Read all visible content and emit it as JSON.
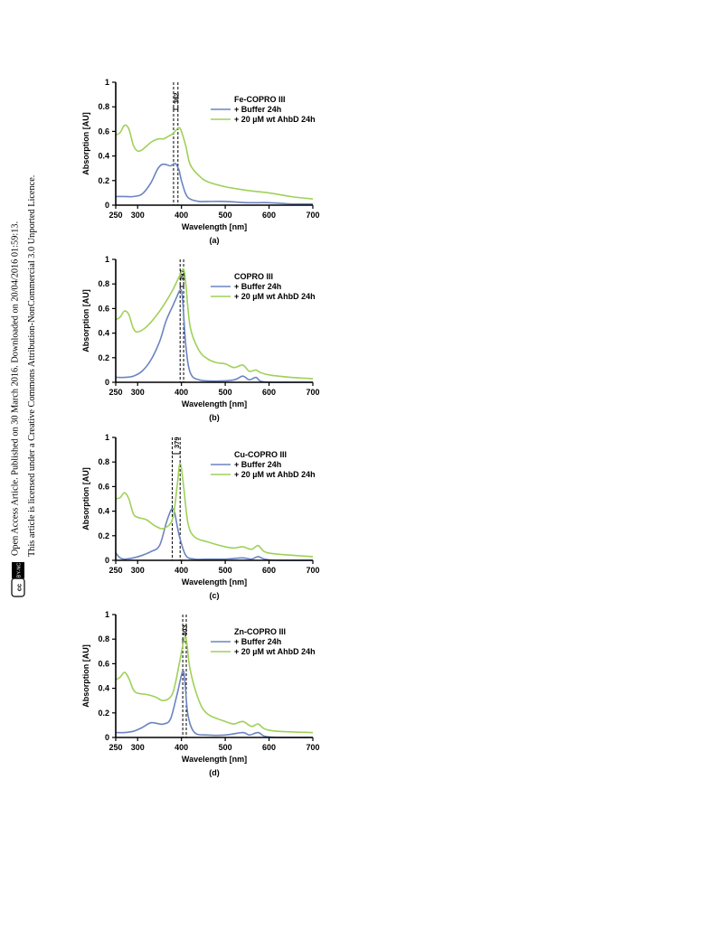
{
  "sidebar": {
    "license_badge": "BY-NC",
    "line1": "Open Access Article. Published on 30 March 2016. Downloaded on 20/04/2016 01:59:13.",
    "line2": "This article is licensed under a Creative Commons Attribution-NonCommercial 3.0 Unported Licence."
  },
  "colors": {
    "buffer": "#6b84c1",
    "ahbd": "#9fd159"
  },
  "chart_data": [
    {
      "type": "line",
      "panel_label": "(a)",
      "xlabel": "Wavelength [nm]",
      "ylabel": "Absorption [AU]",
      "xlim": [
        250,
        700
      ],
      "ylim": [
        0,
        1
      ],
      "xticks": [
        250,
        300,
        400,
        500,
        600,
        700
      ],
      "yticks": [
        0,
        0.2,
        0.4,
        0.6,
        0.8,
        1
      ],
      "legend_title": "Fe-COPRO III",
      "legend_position": "top-right",
      "annotation": "382",
      "vlines": [
        382,
        392
      ],
      "series": [
        {
          "name": "+ Buffer 24h",
          "color": "#6b84c1",
          "x": [
            250,
            270,
            290,
            310,
            330,
            345,
            355,
            365,
            375,
            385,
            390,
            395,
            400,
            410,
            420,
            440,
            460,
            500,
            550,
            600,
            650,
            700
          ],
          "y": [
            0.07,
            0.07,
            0.07,
            0.09,
            0.18,
            0.29,
            0.33,
            0.33,
            0.32,
            0.34,
            0.32,
            0.28,
            0.2,
            0.09,
            0.05,
            0.03,
            0.03,
            0.03,
            0.02,
            0.02,
            0.01,
            0.01
          ]
        },
        {
          "name": "+ 20 µM wt AhbD 24h",
          "color": "#9fd159",
          "x": [
            250,
            260,
            270,
            280,
            290,
            300,
            310,
            320,
            330,
            340,
            350,
            360,
            370,
            380,
            390,
            395,
            400,
            410,
            420,
            440,
            460,
            500,
            550,
            600,
            650,
            700
          ],
          "y": [
            0.57,
            0.59,
            0.65,
            0.62,
            0.49,
            0.44,
            0.45,
            0.48,
            0.51,
            0.53,
            0.54,
            0.54,
            0.56,
            0.58,
            0.62,
            0.63,
            0.6,
            0.48,
            0.33,
            0.24,
            0.19,
            0.15,
            0.12,
            0.1,
            0.07,
            0.05
          ]
        }
      ]
    },
    {
      "type": "line",
      "panel_label": "(b)",
      "xlabel": "Wavelength [nm]",
      "ylabel": "Absorption [AU]",
      "xlim": [
        250,
        700
      ],
      "ylim": [
        0,
        1
      ],
      "xticks": [
        250,
        300,
        400,
        500,
        600,
        700
      ],
      "yticks": [
        0,
        0.2,
        0.4,
        0.6,
        0.8,
        1
      ],
      "legend_title": "COPRO III",
      "legend_position": "top-right",
      "annotation": "397",
      "vlines": [
        397,
        405
      ],
      "series": [
        {
          "name": "+ Buffer 24h",
          "color": "#6b84c1",
          "x": [
            250,
            270,
            290,
            310,
            330,
            350,
            365,
            380,
            390,
            397,
            402,
            410,
            420,
            440,
            480,
            520,
            540,
            555,
            570,
            580,
            600,
            650,
            700
          ],
          "y": [
            0.04,
            0.04,
            0.05,
            0.09,
            0.18,
            0.33,
            0.5,
            0.62,
            0.7,
            0.75,
            0.7,
            0.3,
            0.08,
            0.02,
            0.01,
            0.02,
            0.05,
            0.02,
            0.04,
            0.01,
            0.0,
            0.0,
            0.0
          ]
        },
        {
          "name": "+ 20 µM wt AhbD 24h",
          "color": "#9fd159",
          "x": [
            250,
            260,
            270,
            280,
            290,
            300,
            320,
            340,
            360,
            380,
            395,
            405,
            410,
            420,
            440,
            460,
            480,
            500,
            520,
            540,
            555,
            570,
            580,
            600,
            650,
            700
          ],
          "y": [
            0.51,
            0.53,
            0.58,
            0.55,
            0.44,
            0.41,
            0.45,
            0.53,
            0.63,
            0.75,
            0.86,
            0.92,
            0.8,
            0.45,
            0.26,
            0.19,
            0.16,
            0.15,
            0.12,
            0.14,
            0.09,
            0.1,
            0.08,
            0.06,
            0.04,
            0.03
          ]
        }
      ]
    },
    {
      "type": "line",
      "panel_label": "(c)",
      "xlabel": "Wavelength [nm]",
      "ylabel": "Absorption [AU]",
      "xlim": [
        250,
        700
      ],
      "ylim": [
        0,
        1
      ],
      "xticks": [
        250,
        300,
        400,
        500,
        600,
        700
      ],
      "yticks": [
        0,
        0.2,
        0.4,
        0.6,
        0.8,
        1
      ],
      "legend_title": "Cu-COPRO III",
      "legend_position": "top-right",
      "annotation": "379",
      "vlines": [
        379,
        397
      ],
      "series": [
        {
          "name": "+ Buffer 24h",
          "color": "#6b84c1",
          "x": [
            250,
            260,
            270,
            290,
            310,
            330,
            350,
            365,
            375,
            380,
            385,
            395,
            410,
            430,
            460,
            500,
            540,
            560,
            575,
            590,
            620,
            700
          ],
          "y": [
            0.06,
            0.02,
            0.01,
            0.02,
            0.04,
            0.07,
            0.12,
            0.3,
            0.4,
            0.42,
            0.38,
            0.2,
            0.04,
            0.01,
            0.01,
            0.01,
            0.02,
            0.01,
            0.03,
            0.01,
            0.0,
            0.0
          ]
        },
        {
          "name": "+ 20 µM wt AhbD 24h",
          "color": "#9fd159",
          "x": [
            250,
            260,
            270,
            280,
            290,
            300,
            320,
            340,
            360,
            380,
            390,
            397,
            405,
            415,
            430,
            460,
            500,
            520,
            540,
            560,
            575,
            590,
            620,
            700
          ],
          "y": [
            0.5,
            0.51,
            0.55,
            0.5,
            0.38,
            0.35,
            0.33,
            0.28,
            0.26,
            0.34,
            0.6,
            0.79,
            0.6,
            0.3,
            0.19,
            0.15,
            0.11,
            0.1,
            0.11,
            0.09,
            0.12,
            0.07,
            0.05,
            0.03
          ]
        }
      ]
    },
    {
      "type": "line",
      "panel_label": "(d)",
      "xlabel": "Wavelength [nm]",
      "ylabel": "Absorption [AU]",
      "xlim": [
        250,
        700
      ],
      "ylim": [
        0,
        1
      ],
      "xticks": [
        250,
        300,
        400,
        500,
        600,
        700
      ],
      "yticks": [
        0,
        0.2,
        0.4,
        0.6,
        0.8,
        1
      ],
      "legend_title": "Zn-COPRO III",
      "legend_position": "top-right",
      "annotation": "403",
      "vlines": [
        403,
        411
      ],
      "series": [
        {
          "name": "+ Buffer 24h",
          "color": "#6b84c1",
          "x": [
            250,
            270,
            290,
            310,
            330,
            350,
            360,
            375,
            390,
            403,
            408,
            415,
            430,
            460,
            500,
            540,
            555,
            575,
            590,
            620,
            700
          ],
          "y": [
            0.04,
            0.04,
            0.05,
            0.08,
            0.12,
            0.11,
            0.11,
            0.15,
            0.35,
            0.54,
            0.45,
            0.18,
            0.04,
            0.02,
            0.02,
            0.04,
            0.02,
            0.04,
            0.01,
            0.0,
            0.0
          ]
        },
        {
          "name": "+ 20 µM wt AhbD 24h",
          "color": "#9fd159",
          "x": [
            250,
            260,
            270,
            280,
            290,
            300,
            320,
            340,
            360,
            380,
            395,
            405,
            411,
            420,
            440,
            460,
            500,
            520,
            540,
            560,
            575,
            590,
            620,
            700
          ],
          "y": [
            0.47,
            0.49,
            0.53,
            0.48,
            0.39,
            0.36,
            0.35,
            0.33,
            0.3,
            0.36,
            0.6,
            0.78,
            0.8,
            0.55,
            0.3,
            0.19,
            0.13,
            0.11,
            0.13,
            0.09,
            0.11,
            0.07,
            0.05,
            0.04
          ]
        }
      ]
    }
  ]
}
